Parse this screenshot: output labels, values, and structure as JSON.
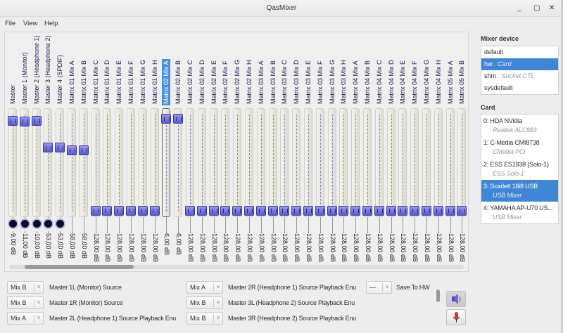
{
  "window": {
    "title": "QasMixer",
    "controls": [
      "_",
      "▢",
      "✕"
    ]
  },
  "menu": [
    "File",
    "View",
    "Help"
  ],
  "channels": [
    {
      "label": "Master",
      "value": "-9,00 dB",
      "db": -9,
      "switch": true
    },
    {
      "label": "Master 1 (Monitor)",
      "value": "-11,00 dB",
      "db": -11,
      "switch": true
    },
    {
      "label": "Master 2 (Headphone 1)",
      "value": "-10,00 dB",
      "db": -10,
      "switch": true
    },
    {
      "label": "Master 3 (Headphone 2)",
      "value": "-53,00 dB",
      "db": -53,
      "switch": true
    },
    {
      "label": "Master 4 (SPDIF)",
      "value": "-53,00 dB",
      "db": -53,
      "switch": true
    },
    {
      "label": "Matrix 01 Mix A",
      "value": "-58,00 dB",
      "db": -58
    },
    {
      "label": "Matrix 01 Mix B",
      "value": "-58,00 dB",
      "db": -58
    },
    {
      "label": "Matrix 01 Mix C",
      "value": "-128,00 dB",
      "db": -128
    },
    {
      "label": "Matrix 01 Mix D",
      "value": "-128,00 dB",
      "db": -128
    },
    {
      "label": "Matrix 01 Mix E",
      "value": "-128,00 dB",
      "db": -128
    },
    {
      "label": "Matrix 01 Mix F",
      "value": "-128,00 dB",
      "db": -128
    },
    {
      "label": "Matrix 01 Mix G",
      "value": "-128,00 dB",
      "db": -128
    },
    {
      "label": "Matrix 01 Mix H",
      "value": "-128,00 dB",
      "db": -128
    },
    {
      "label": "Matrix 02 Mix A",
      "value": "-6,00 dB",
      "db": -6,
      "selected": true
    },
    {
      "label": "Matrix 02 Mix B",
      "value": "-6,00 dB",
      "db": -6
    },
    {
      "label": "Matrix 02 Mix C",
      "value": "-128,00 dB",
      "db": -128
    },
    {
      "label": "Matrix 02 Mix D",
      "value": "-128,00 dB",
      "db": -128
    },
    {
      "label": "Matrix 02 Mix E",
      "value": "-128,00 dB",
      "db": -128
    },
    {
      "label": "Matrix 02 Mix F",
      "value": "-128,00 dB",
      "db": -128
    },
    {
      "label": "Matrix 02 Mix G",
      "value": "-128,00 dB",
      "db": -128
    },
    {
      "label": "Matrix 02 Mix H",
      "value": "-128,00 dB",
      "db": -128
    },
    {
      "label": "Matrix 03 Mix A",
      "value": "-128,00 dB",
      "db": -128
    },
    {
      "label": "Matrix 03 Mix B",
      "value": "-128,00 dB",
      "db": -128
    },
    {
      "label": "Matrix 03 Mix C",
      "value": "-128,00 dB",
      "db": -128
    },
    {
      "label": "Matrix 03 Mix D",
      "value": "-128,00 dB",
      "db": -128
    },
    {
      "label": "Matrix 03 Mix E",
      "value": "-128,00 dB",
      "db": -128
    },
    {
      "label": "Matrix 03 Mix F",
      "value": "-128,00 dB",
      "db": -128
    },
    {
      "label": "Matrix 03 Mix G",
      "value": "-128,00 dB",
      "db": -128
    },
    {
      "label": "Matrix 03 Mix H",
      "value": "-128,00 dB",
      "db": -128
    },
    {
      "label": "Matrix 04 Mix A",
      "value": "-128,00 dB",
      "db": -128
    },
    {
      "label": "Matrix 04 Mix B",
      "value": "-128,00 dB",
      "db": -128
    },
    {
      "label": "Matrix 04 Mix C",
      "value": "-128,00 dB",
      "db": -128
    },
    {
      "label": "Matrix 04 Mix D",
      "value": "-128,00 dB",
      "db": -128
    },
    {
      "label": "Matrix 04 Mix E",
      "value": "-128,00 dB",
      "db": -128
    },
    {
      "label": "Matrix 04 Mix F",
      "value": "-128,00 dB",
      "db": -128
    },
    {
      "label": "Matrix 04 Mix G",
      "value": "-128,00 dB",
      "db": -128
    },
    {
      "label": "Matrix 04 Mix H",
      "value": "-128,00 dB",
      "db": -128
    },
    {
      "label": "Matrix 05 Mix A",
      "value": "-128,00 dB",
      "db": -128
    },
    {
      "label": "Matrix 05 Mix B",
      "value": "-128,00 dB",
      "db": -128
    }
  ],
  "enums": {
    "col1": [
      {
        "value": "Mix B",
        "label": "Master 1L (Monitor) Source"
      },
      {
        "value": "Mix B",
        "label": "Master 1R (Monitor) Source"
      },
      {
        "value": "Mix A",
        "label": "Master 2L (Headphone 1) Source Playback Enu"
      }
    ],
    "col2": [
      {
        "value": "Mix A",
        "label": "Master 2R (Headphone 1) Source Playback Enu"
      },
      {
        "value": "Mix B",
        "label": "Master 3L (Headphone 2) Source Playback Enu"
      },
      {
        "value": "Mix B",
        "label": "Master 3R (Headphone 2) Source Playback Enu"
      }
    ],
    "save": {
      "value": "---",
      "label": "Save To HW"
    }
  },
  "sidebar": {
    "mixer_device_title": "Mixer device",
    "devices": [
      {
        "name": "default",
        "sub": ""
      },
      {
        "name": "hw",
        "sub": " : Card",
        "selected": true
      },
      {
        "name": "shm",
        "sub": " : Socket,CTL"
      },
      {
        "name": "sysdefault",
        "sub": ""
      }
    ],
    "card_title": "Card",
    "cards": [
      {
        "name": "0: HDA NVidia",
        "sub": "Realtek ALC883"
      },
      {
        "name": "1: C-Media CMI8738",
        "sub": "CMedia PCI"
      },
      {
        "name": "2: ESS ES1938 (Solo-1)",
        "sub": "ESS Solo-1"
      },
      {
        "name": "3: Scarlett 18i8 USB",
        "sub": "USB Mixer",
        "selected": true
      },
      {
        "name": "4: YAMAHA AP-U70 US...",
        "sub": "USB Mixer"
      }
    ]
  }
}
